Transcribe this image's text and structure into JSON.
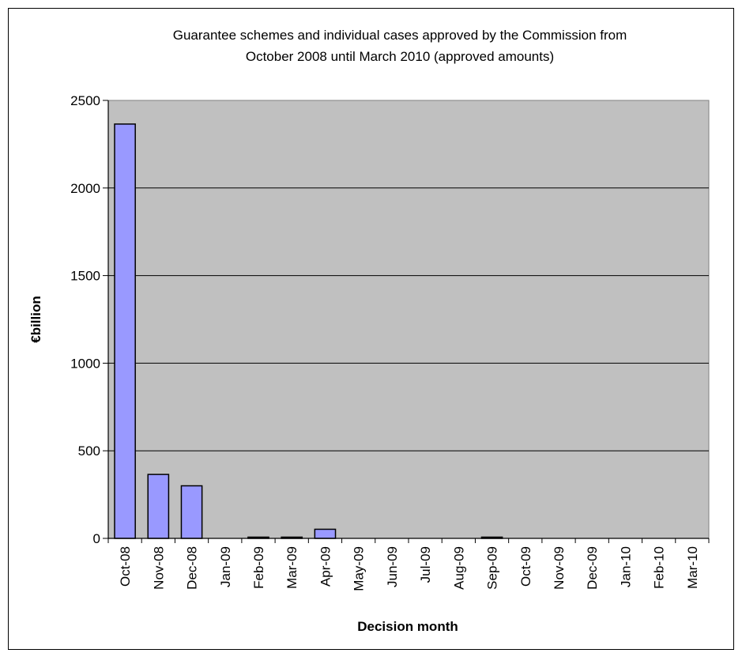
{
  "chart_data": {
    "type": "bar",
    "title_lines": [
      "Guarantee schemes and individual cases approved by the Commission from",
      "October 2008 until March 2010 (approved amounts)"
    ],
    "xlabel": "Decision month",
    "ylabel": "€billion",
    "ylim": [
      0,
      2500
    ],
    "yticks": [
      0,
      500,
      1000,
      1500,
      2000,
      2500
    ],
    "grid": true,
    "legend": "none",
    "categories": [
      "Oct-08",
      "Nov-08",
      "Dec-08",
      "Jan-09",
      "Feb-09",
      "Mar-09",
      "Apr-09",
      "May-09",
      "Jun-09",
      "Jul-09",
      "Aug-09",
      "Sep-09",
      "Oct-09",
      "Nov-09",
      "Dec-09",
      "Jan-10",
      "Feb-10",
      "Mar-10"
    ],
    "values": [
      2365,
      365,
      300,
      0,
      7,
      7,
      52,
      0,
      0,
      0,
      0,
      7,
      0,
      0,
      0,
      0,
      0,
      0
    ],
    "colors": {
      "bar_fill": "#9999FF",
      "bar_stroke": "#000000",
      "plot_bg": "#C0C0C0",
      "grid": "#000000"
    }
  }
}
